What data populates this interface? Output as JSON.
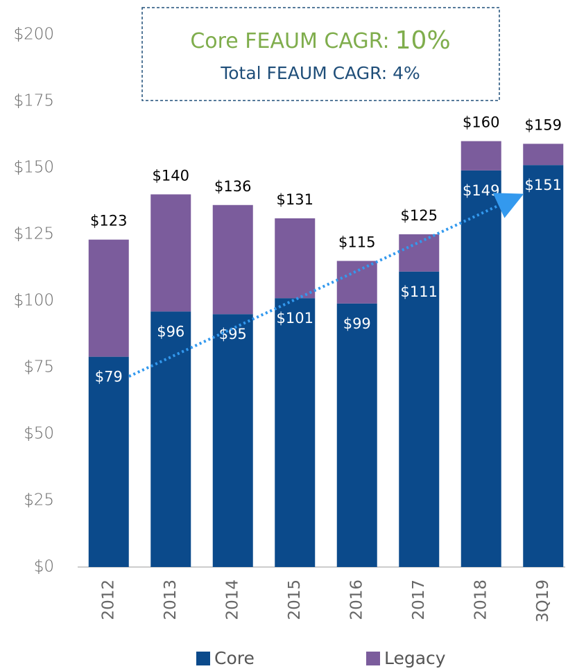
{
  "chart_data": {
    "type": "stacked_bar",
    "annotations": {
      "core_cagr_label": "Core FEAUM CAGR:",
      "core_cagr_value": "10%",
      "total_cagr": "Total FEAUM CAGR: 4%"
    },
    "categories": [
      "2012",
      "2013",
      "2014",
      "2015",
      "2016",
      "2017",
      "2018",
      "3Q19"
    ],
    "series": [
      {
        "name": "Core",
        "color": "#0b4a8b",
        "values": [
          79,
          96,
          95,
          101,
          99,
          111,
          149,
          151
        ],
        "value_labels": [
          "$79",
          "$96",
          "$95",
          "$101",
          "$99",
          "$111",
          "$149",
          "$151"
        ]
      },
      {
        "name": "Legacy",
        "color": "#7b5c9c",
        "values": [
          44,
          44,
          41,
          30,
          16,
          14,
          11,
          8
        ]
      }
    ],
    "totals": [
      123,
      140,
      136,
      131,
      115,
      125,
      160,
      159
    ],
    "total_labels": [
      "$123",
      "$140",
      "$136",
      "$131",
      "$115",
      "$125",
      "$160",
      "$159"
    ],
    "ylim": [
      0,
      200
    ],
    "yticks": [
      {
        "value": 0,
        "label": "$0"
      },
      {
        "value": 25,
        "label": "$25"
      },
      {
        "value": 50,
        "label": "$50"
      },
      {
        "value": 75,
        "label": "$75"
      },
      {
        "value": 100,
        "label": "$100"
      },
      {
        "value": 125,
        "label": "$125"
      },
      {
        "value": 150,
        "label": "$150"
      },
      {
        "value": 175,
        "label": "$175"
      },
      {
        "value": 200,
        "label": "$200"
      }
    ],
    "grid": false
  }
}
